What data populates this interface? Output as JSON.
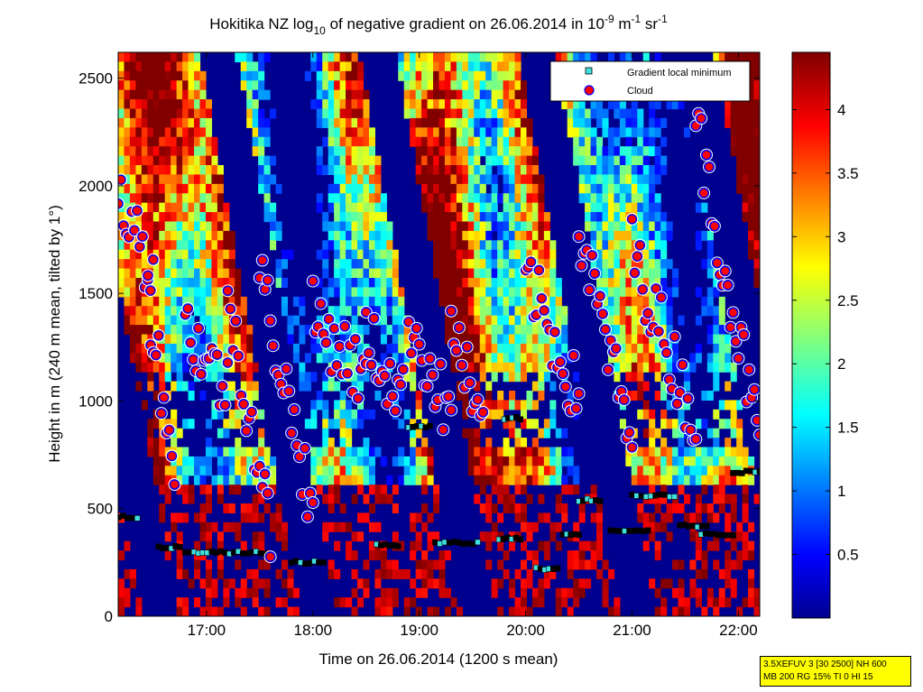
{
  "chart_data": {
    "type": "heatmap",
    "title": {
      "prefix": "Hokitika NZ log",
      "sub": "10",
      "middle": " of negative gradient on 26.06.2014 in 10",
      "sup1": "-9",
      "unit1": " m",
      "sup2": "-1",
      "unit2": " sr",
      "sup3": "-1"
    },
    "xlabel": "Time on 26.06.2014 (1200 s mean)",
    "ylabel": "Height in m (240 m mean, tilted by 1°)",
    "x_ticks": [
      {
        "value": 17.0,
        "label": "17:00"
      },
      {
        "value": 18.0,
        "label": "18:00"
      },
      {
        "value": 19.0,
        "label": "19:00"
      },
      {
        "value": 20.0,
        "label": "20:00"
      },
      {
        "value": 21.0,
        "label": "21:00"
      },
      {
        "value": 22.0,
        "label": "22:00"
      }
    ],
    "xlim": [
      16.17,
      22.2
    ],
    "y_ticks": [
      0,
      500,
      1000,
      1500,
      2000,
      2500
    ],
    "ylim": [
      0,
      2620
    ],
    "colorbar": {
      "range": [
        0,
        4.45
      ],
      "ticks": [
        "0.5",
        "1",
        "1.5",
        "2",
        "2.5",
        "3",
        "3.5",
        "4"
      ],
      "tick_values": [
        0.5,
        1,
        1.5,
        2,
        2.5,
        3,
        3.5,
        4
      ],
      "colormap": "jet"
    },
    "legend": {
      "position": "top-right",
      "entries": [
        {
          "label": "Gradient local minimum",
          "marker": "square",
          "color": "#40e0e0"
        },
        {
          "label": "Cloud",
          "marker": "circle",
          "color": "#ff0000"
        }
      ]
    },
    "gradient_minimum_segments": [
      {
        "x0": 16.17,
        "x1": 16.35,
        "y": 460
      },
      {
        "x0": 16.55,
        "x1": 16.75,
        "y": 320
      },
      {
        "x0": 16.8,
        "x1": 17.55,
        "y": 295
      },
      {
        "x0": 17.8,
        "x1": 18.1,
        "y": 250
      },
      {
        "x0": 18.6,
        "x1": 18.8,
        "y": 330
      },
      {
        "x0": 18.9,
        "x1": 19.1,
        "y": 880
      },
      {
        "x0": 19.15,
        "x1": 19.55,
        "y": 340
      },
      {
        "x0": 19.75,
        "x1": 19.95,
        "y": 360
      },
      {
        "x0": 19.8,
        "x1": 19.95,
        "y": 920
      },
      {
        "x0": 20.1,
        "x1": 20.3,
        "y": 220
      },
      {
        "x0": 20.35,
        "x1": 20.5,
        "y": 380
      },
      {
        "x0": 20.5,
        "x1": 20.7,
        "y": 540
      },
      {
        "x0": 20.8,
        "x1": 21.15,
        "y": 400
      },
      {
        "x0": 21.0,
        "x1": 21.4,
        "y": 560
      },
      {
        "x0": 21.45,
        "x1": 21.7,
        "y": 420
      },
      {
        "x0": 21.65,
        "x1": 21.95,
        "y": 380
      },
      {
        "x0": 21.95,
        "x1": 22.2,
        "y": 670
      }
    ],
    "cloud_layers": [
      {
        "x0": 16.17,
        "x1": 16.5,
        "y0": 1950,
        "y1": 1600
      },
      {
        "x0": 16.45,
        "x1": 16.7,
        "y0": 1500,
        "y1": 700
      },
      {
        "x0": 16.8,
        "x1": 17.2,
        "y0": 1350,
        "y1": 1050
      },
      {
        "x0": 17.2,
        "x1": 17.6,
        "y0": 1500,
        "y1": 400
      },
      {
        "x0": 17.5,
        "x1": 18.0,
        "y0": 1600,
        "y1": 500
      },
      {
        "x0": 18.0,
        "x1": 18.5,
        "y0": 1400,
        "y1": 1100
      },
      {
        "x0": 18.5,
        "x1": 18.85,
        "y0": 1300,
        "y1": 1000
      },
      {
        "x0": 18.9,
        "x1": 19.3,
        "y0": 1400,
        "y1": 900
      },
      {
        "x0": 19.3,
        "x1": 19.6,
        "y0": 1400,
        "y1": 800
      },
      {
        "x0": 20.0,
        "x1": 20.5,
        "y0": 1600,
        "y1": 1000
      },
      {
        "x0": 20.5,
        "x1": 21.0,
        "y0": 1800,
        "y1": 800
      },
      {
        "x0": 21.0,
        "x1": 21.6,
        "y0": 1700,
        "y1": 900
      },
      {
        "x0": 21.6,
        "x1": 22.2,
        "y0": 2300,
        "y1": 800
      }
    ]
  },
  "info_box": {
    "line1": "3.5XEFUV 3 [30 2500] NH 600",
    "line2": "MB 200 RG 15% TI 0 HI 15"
  }
}
